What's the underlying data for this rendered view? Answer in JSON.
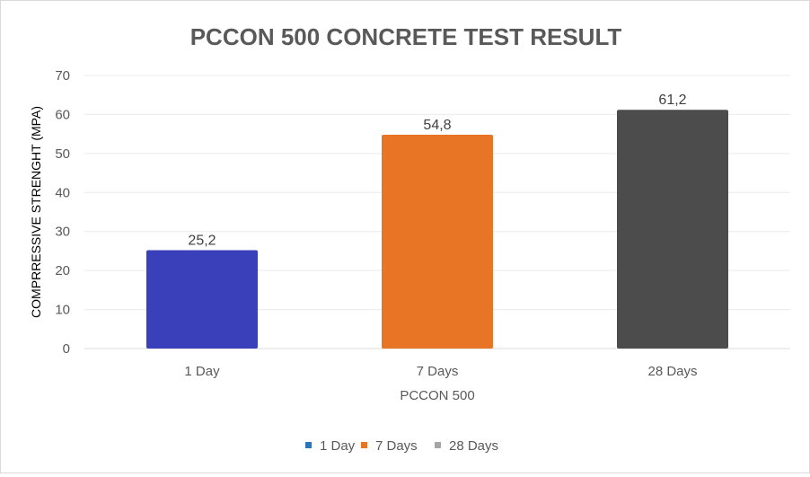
{
  "chart_data": {
    "type": "bar",
    "title": "PCCON 500 CONCRETE TEST RESULT",
    "xlabel": "PCCON 500",
    "ylabel": "COMPRRESSIVE STRENGHT (MPA)",
    "categories": [
      "1 Day",
      "7 Days",
      "28 Days"
    ],
    "values": [
      25.2,
      54.8,
      61.2
    ],
    "data_labels": [
      "25,2",
      "54,8",
      "61,2"
    ],
    "colors": [
      "#3a40b9",
      "#e87425",
      "#4c4c4c"
    ],
    "legend": {
      "position": "bottom",
      "entries": [
        {
          "label": "1 Day",
          "color": "#2e75b6"
        },
        {
          "label": "7 Days",
          "color": "#e87425"
        },
        {
          "label": "28 Days",
          "color": "#a5a5a5"
        }
      ]
    },
    "ylim": [
      0,
      70
    ],
    "yticks": [
      "0",
      "10",
      "20",
      "30",
      "40",
      "50",
      "60",
      "70"
    ],
    "grid": true
  }
}
